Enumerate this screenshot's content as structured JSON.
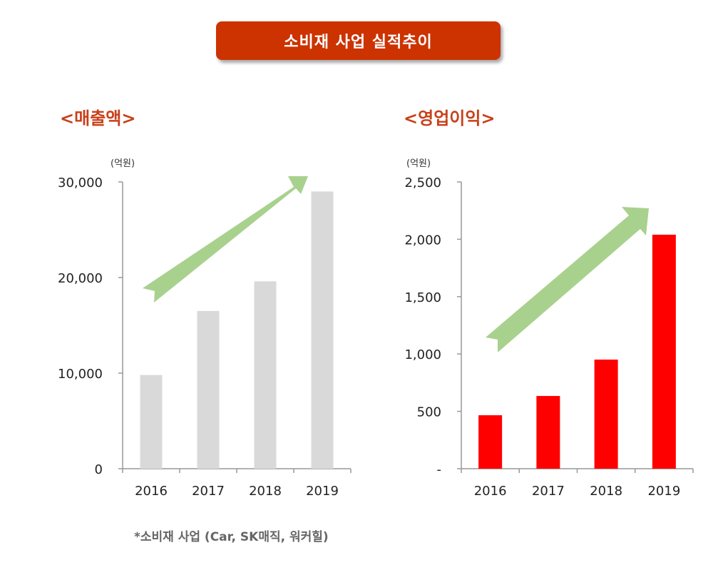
{
  "title": "소비재 사업 실적추이",
  "footnote": "*소비재 사업 (Car, SK매직, 워커힐)",
  "chart_data": [
    {
      "type": "bar",
      "title": "<매출액>",
      "unit": "(억원)",
      "categories": [
        "2016",
        "2017",
        "2018",
        "2019"
      ],
      "values": [
        9800,
        16500,
        19600,
        29000
      ],
      "ylim": [
        0,
        30000
      ],
      "yticks": [
        "0",
        "10,000",
        "20,000",
        "30,000"
      ],
      "ytick_values": [
        0,
        10000,
        20000,
        30000
      ],
      "bar_color": "#d9d9d9",
      "trend_arrow_color": "#a9d18e",
      "grid": false
    },
    {
      "type": "bar",
      "title": "<영업이익>",
      "unit": "(억원)",
      "categories": [
        "2016",
        "2017",
        "2018",
        "2019"
      ],
      "values": [
        466,
        634,
        951,
        2040
      ],
      "ylim": [
        0,
        2500
      ],
      "yticks": [
        "-",
        "500",
        "1,000",
        "1,500",
        "2,000",
        "2,500"
      ],
      "ytick_values": [
        0,
        500,
        1000,
        1500,
        2000,
        2500
      ],
      "bar_color": "#ff0000",
      "trend_arrow_color": "#a9d18e",
      "grid": false
    }
  ]
}
